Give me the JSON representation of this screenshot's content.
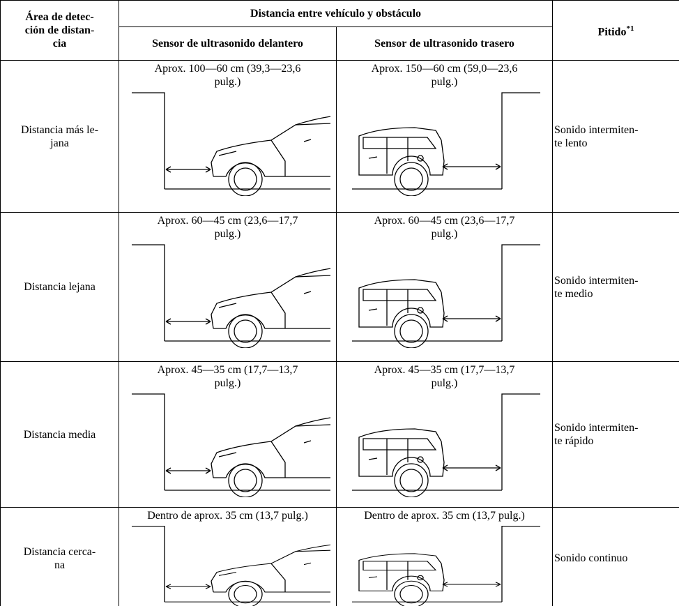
{
  "table": {
    "header": {
      "area": [
        "Área de detec-",
        "ción de distan-",
        "cia"
      ],
      "distance": "Distancia entre vehículo y obstáculo",
      "front": "Sensor de ultrasonido delantero",
      "rear": "Sensor de ultrasonido trasero",
      "beep": "Pitido",
      "beep_note": "*1"
    },
    "rows": [
      {
        "area": [
          "Distancia más le-",
          "jana"
        ],
        "front": [
          "Aprox. 100—60 cm (39,3—23,6",
          "pulg.)"
        ],
        "rear": [
          "Aprox. 150—60 cm (59,0—23,6",
          "pulg.)"
        ],
        "beep": [
          "Sonido intermiten-",
          "te lento"
        ]
      },
      {
        "area": [
          "Distancia lejana"
        ],
        "front": [
          "Aprox. 60—45 cm (23,6—17,7",
          "pulg.)"
        ],
        "rear": [
          "Aprox. 60—45 cm (23,6—17,7",
          "pulg.)"
        ],
        "beep": [
          "Sonido intermiten-",
          "te medio"
        ]
      },
      {
        "area": [
          "Distancia media"
        ],
        "front": [
          "Aprox. 45—35 cm (17,7—13,7",
          "pulg.)"
        ],
        "rear": [
          "Aprox. 45—35 cm (17,7—13,7",
          "pulg.)"
        ],
        "beep": [
          "Sonido intermiten-",
          "te rápido"
        ]
      },
      {
        "area": [
          "Distancia cerca-",
          "na"
        ],
        "front": [
          "Dentro de aprox. 35 cm (13,7 pulg.)"
        ],
        "rear": [
          "Dentro de aprox. 35 cm (13,7 pulg.)"
        ],
        "beep": [
          "Sonido continuo"
        ]
      }
    ]
  }
}
